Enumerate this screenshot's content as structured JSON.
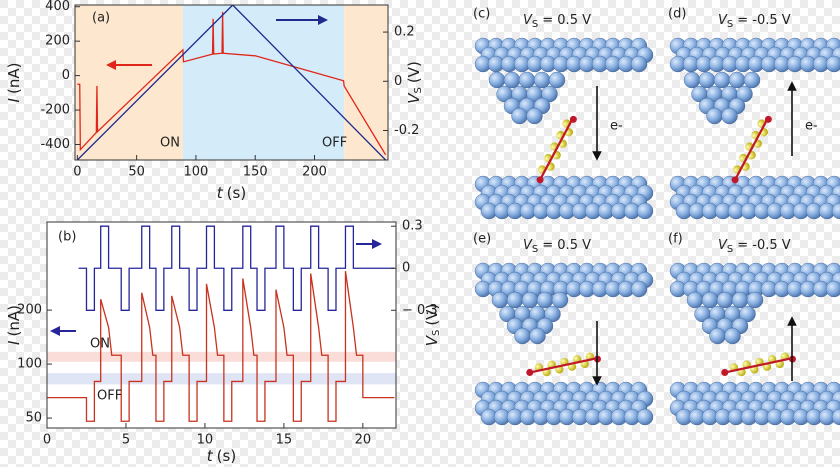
{
  "chart_data": [
    {
      "type": "line",
      "xlabel": {
        "symbol": "t",
        "unit": "(s)"
      },
      "ylabel": {
        "symbol": "I",
        "unit": "(nA)"
      },
      "y2label": {
        "symbol": "V",
        "subscript": "S",
        "unit": "(V)"
      },
      "xlim": [
        -2,
        262
      ],
      "xticks": [
        0,
        50,
        100,
        150,
        200
      ],
      "ylim": [
        -490,
        410
      ],
      "yticks": [
        -400,
        -200,
        0,
        200,
        400
      ],
      "y2lim": [
        -0.32,
        0.31
      ],
      "y2ticks": [
        -0.2,
        0,
        0.2
      ],
      "bands": [
        {
          "axis": "x",
          "from": -2,
          "to": 89,
          "color": "#fde8cf"
        },
        {
          "axis": "x",
          "from": 89,
          "to": 225,
          "color": "#d4ecfa"
        },
        {
          "axis": "x",
          "from": 225,
          "to": 262,
          "color": "#fde8cf"
        }
      ],
      "series": [
        {
          "color": "#e0261b",
          "x": [
            0,
            2,
            2.5,
            16,
            16.5,
            17,
            89,
            89.5,
            114,
            114.5,
            115,
            122,
            122.5,
            123,
            150,
            224.5,
            225,
            260
          ],
          "values": [
            -50,
            -50,
            -430,
            -330,
            -60,
            -325,
            150,
            80,
            125,
            330,
            125,
            130,
            370,
            130,
            115,
            -30,
            -60,
            -460
          ]
        },
        {
          "axis": "y2",
          "color": "#1f2a8c",
          "x": [
            0,
            131,
            260
          ],
          "values": [
            -0.32,
            0.31,
            -0.32
          ]
        }
      ],
      "annotations": [
        {
          "text": "(a)",
          "color": "#222222"
        },
        {
          "text": "ON",
          "color": "#e0261b"
        },
        {
          "text": "OFF",
          "color": "#1f2a8c"
        }
      ]
    },
    {
      "type": "line",
      "xlabel": {
        "symbol": "t",
        "unit": "(s)"
      },
      "ylabel": {
        "symbol": "I",
        "unit": "(nA)"
      },
      "y2label": {
        "symbol": "V",
        "subscript": "S",
        "unit": "(V)"
      },
      "xlim": [
        0,
        22.1
      ],
      "xticks": [
        0,
        5,
        10,
        15,
        20
      ],
      "yscale": "log",
      "ylim": [
        44,
        620
      ],
      "yticks": [
        50,
        100,
        200
      ],
      "y2lim": [
        -1.14,
        0.33
      ],
      "y2ticks": [
        0.3,
        0,
        {
          "value": -0.3,
          "label": "− 0.3"
        }
      ],
      "bands": [
        {
          "axis": "y",
          "from": 103,
          "to": 117,
          "color": "#f9d3cf"
        },
        {
          "axis": "y",
          "from": 77,
          "to": 89,
          "color": "#d8dff2"
        }
      ],
      "series": [
        {
          "color": "#c8321e",
          "x": [
            0,
            2.5,
            2.5,
            3.0,
            3.0,
            3.4,
            3.4,
            3.9,
            4.1,
            4.7,
            4.7,
            5.2,
            5.2,
            6.0,
            6.0,
            6.5,
            6.7,
            6.9,
            6.9,
            7.4,
            7.4,
            7.9,
            7.9,
            8.4,
            8.6,
            9.0,
            9.0,
            9.5,
            9.5,
            10.1,
            10.1,
            10.6,
            10.8,
            11.2,
            11.2,
            11.7,
            11.7,
            12.4,
            12.4,
            12.9,
            13.1,
            13.3,
            13.3,
            13.8,
            13.8,
            14.5,
            14.5,
            15.0,
            15.2,
            15.6,
            15.6,
            16.1,
            16.1,
            16.7,
            16.7,
            17.2,
            17.4,
            17.8,
            17.8,
            18.3,
            18.3,
            18.9,
            18.9,
            19.4,
            19.6,
            20,
            20,
            22
          ],
          "values": [
            65,
            65,
            48,
            48,
            80,
            80,
            230,
            160,
            112,
            112,
            48,
            48,
            80,
            80,
            250,
            160,
            112,
            112,
            48,
            48,
            80,
            80,
            240,
            160,
            112,
            112,
            48,
            48,
            80,
            80,
            280,
            160,
            112,
            112,
            48,
            48,
            80,
            80,
            300,
            160,
            112,
            112,
            48,
            48,
            80,
            80,
            260,
            160,
            112,
            112,
            48,
            48,
            80,
            80,
            320,
            160,
            112,
            112,
            48,
            48,
            80,
            80,
            330,
            160,
            112,
            112,
            65,
            65
          ]
        },
        {
          "axis": "y2",
          "color": "#26269a",
          "x": [
            2.0,
            2.5,
            2.5,
            3.0,
            3.0,
            3.4,
            3.4,
            3.9,
            3.9,
            4.7,
            4.7,
            5.2,
            5.2,
            6.0,
            6.0,
            6.5,
            6.5,
            6.9,
            6.9,
            7.4,
            7.4,
            7.9,
            7.9,
            8.4,
            8.4,
            9.0,
            9.0,
            9.5,
            9.5,
            10.1,
            10.1,
            10.6,
            10.6,
            11.2,
            11.2,
            11.7,
            11.7,
            12.4,
            12.4,
            12.9,
            12.9,
            13.3,
            13.3,
            13.8,
            13.8,
            14.5,
            14.5,
            15.0,
            15.0,
            15.6,
            15.6,
            16.1,
            16.1,
            16.7,
            16.7,
            17.2,
            17.2,
            17.8,
            17.8,
            18.3,
            18.3,
            18.9,
            18.9,
            19.4,
            19.4,
            22
          ],
          "values": [
            0,
            0,
            -0.3,
            -0.3,
            0,
            0,
            0.3,
            0.3,
            0,
            0,
            -0.3,
            -0.3,
            0,
            0,
            0.3,
            0.3,
            0,
            0,
            -0.3,
            -0.3,
            0,
            0,
            0.3,
            0.3,
            0,
            0,
            -0.3,
            -0.3,
            0,
            0,
            0.3,
            0.3,
            0,
            0,
            -0.3,
            -0.3,
            0,
            0,
            0.3,
            0.3,
            0,
            0,
            -0.3,
            -0.3,
            0,
            0,
            0.3,
            0.3,
            0,
            0,
            -0.3,
            -0.3,
            0,
            0,
            0.3,
            0.3,
            0,
            0,
            -0.3,
            -0.3,
            0,
            0,
            0.3,
            0.3,
            0,
            0
          ]
        }
      ],
      "annotations": [
        {
          "text": "(b)",
          "color": "#222222"
        },
        {
          "text": "ON",
          "color": "#c8321e"
        },
        {
          "text": "OFF",
          "color": "#26269a"
        }
      ]
    }
  ],
  "panels": [
    {
      "label": "(c)",
      "symbol": "V",
      "subscript": "S",
      "value": "= 0.5 V",
      "note": "e-"
    },
    {
      "label": "(d)",
      "symbol": "V",
      "subscript": "S",
      "value": "= -0.5 V",
      "note": "e-"
    },
    {
      "label": "(e)",
      "symbol": "V",
      "subscript": "S",
      "value": "= 0.5 V"
    },
    {
      "label": "(f)",
      "symbol": "V",
      "subscript": "S",
      "value": "= -0.5 V"
    }
  ]
}
